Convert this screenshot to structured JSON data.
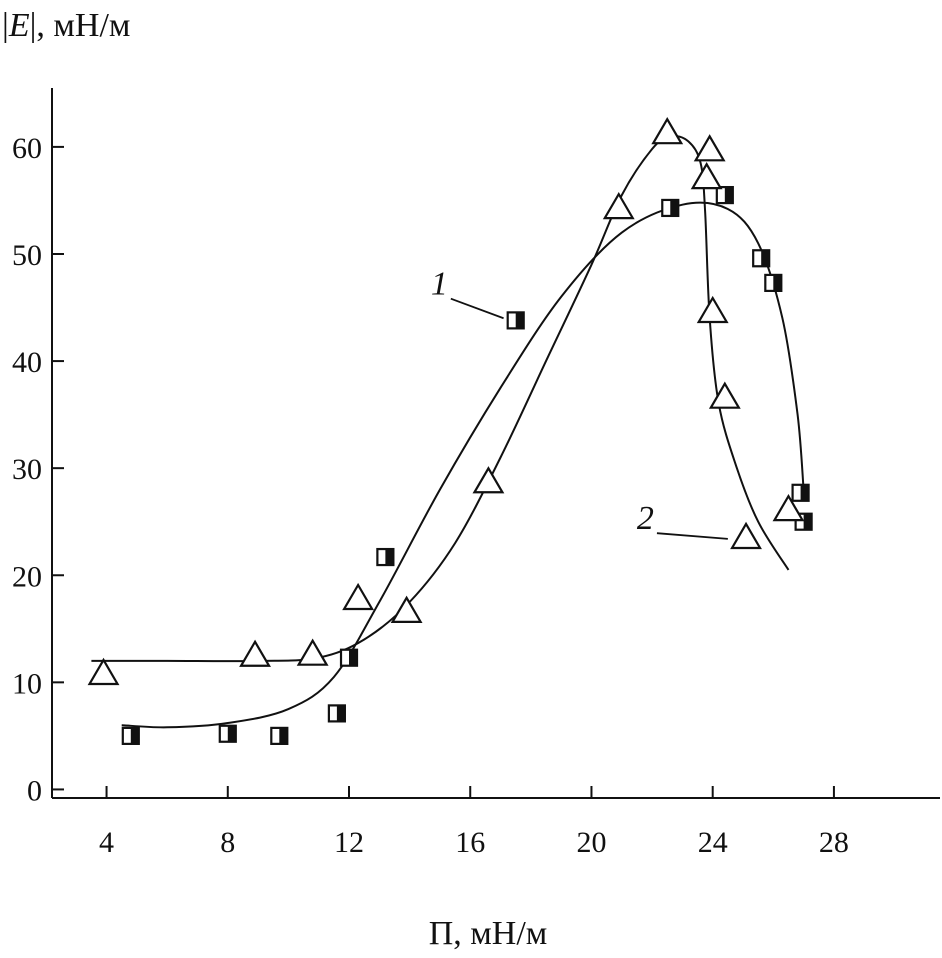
{
  "chart_data": {
    "type": "scatter",
    "xlabel": "Π, мН/м",
    "ylabel_prefix": "|",
    "ylabel_var": "E",
    "ylabel_suffix": "|, мН/м",
    "xlim": [
      2.2,
      31.5
    ],
    "ylim": [
      -0.8,
      65.5
    ],
    "x_ticks": [
      4,
      8,
      12,
      16,
      20,
      24,
      28
    ],
    "y_ticks": [
      0,
      10,
      20,
      30,
      40,
      50,
      60
    ],
    "grid": false,
    "series": [
      {
        "name": "1",
        "marker": "half-filled-square",
        "points": [
          [
            4.8,
            5.0
          ],
          [
            8.0,
            5.2
          ],
          [
            9.7,
            5.0
          ],
          [
            11.6,
            7.1
          ],
          [
            12.0,
            12.3
          ],
          [
            13.2,
            21.7
          ],
          [
            17.5,
            43.8
          ],
          [
            22.6,
            54.3
          ],
          [
            24.4,
            55.5
          ],
          [
            25.6,
            49.6
          ],
          [
            26.0,
            47.3
          ],
          [
            26.9,
            27.7
          ],
          [
            27.0,
            25.0
          ]
        ],
        "curve": [
          [
            4.5,
            6.0
          ],
          [
            6.0,
            5.8
          ],
          [
            8.0,
            6.2
          ],
          [
            10.0,
            7.5
          ],
          [
            11.5,
            10.5
          ],
          [
            13.0,
            17.5
          ],
          [
            15.0,
            28.0
          ],
          [
            17.0,
            37.5
          ],
          [
            19.0,
            46.0
          ],
          [
            21.0,
            52.0
          ],
          [
            23.0,
            54.6
          ],
          [
            24.5,
            54.2
          ],
          [
            25.5,
            51.0
          ],
          [
            26.3,
            44.0
          ],
          [
            26.8,
            35.0
          ],
          [
            27.0,
            28.0
          ]
        ]
      },
      {
        "name": "2",
        "marker": "triangle",
        "points": [
          [
            3.9,
            10.7
          ],
          [
            8.9,
            12.4
          ],
          [
            10.8,
            12.5
          ],
          [
            12.3,
            17.7
          ],
          [
            13.9,
            16.5
          ],
          [
            16.6,
            28.6
          ],
          [
            20.9,
            54.2
          ],
          [
            22.5,
            61.2
          ],
          [
            23.8,
            57.0
          ],
          [
            23.9,
            59.6
          ],
          [
            24.0,
            44.5
          ],
          [
            24.4,
            36.5
          ],
          [
            26.5,
            26.0
          ],
          [
            25.1,
            23.4
          ]
        ],
        "curve": [
          [
            3.5,
            12.0
          ],
          [
            6.0,
            12.0
          ],
          [
            9.0,
            12.0
          ],
          [
            11.0,
            12.3
          ],
          [
            12.5,
            14.0
          ],
          [
            14.0,
            17.5
          ],
          [
            15.5,
            23.0
          ],
          [
            17.0,
            31.0
          ],
          [
            18.5,
            40.0
          ],
          [
            20.0,
            49.0
          ],
          [
            21.0,
            55.5
          ],
          [
            22.0,
            59.8
          ],
          [
            22.6,
            61.0
          ],
          [
            23.2,
            60.5
          ],
          [
            23.6,
            58.5
          ],
          [
            23.75,
            54.0
          ],
          [
            23.9,
            44.0
          ],
          [
            24.2,
            36.0
          ],
          [
            24.8,
            30.0
          ],
          [
            25.5,
            25.0
          ],
          [
            26.5,
            20.5
          ]
        ]
      }
    ],
    "annotations": [
      {
        "text": "1",
        "series": "1",
        "label_at": [
          14.7,
          46.2
        ],
        "leader_to": [
          17.1,
          44.0
        ]
      },
      {
        "text": "2",
        "series": "2",
        "label_at": [
          21.5,
          24.3
        ],
        "leader_to": [
          24.5,
          23.4
        ]
      }
    ]
  }
}
